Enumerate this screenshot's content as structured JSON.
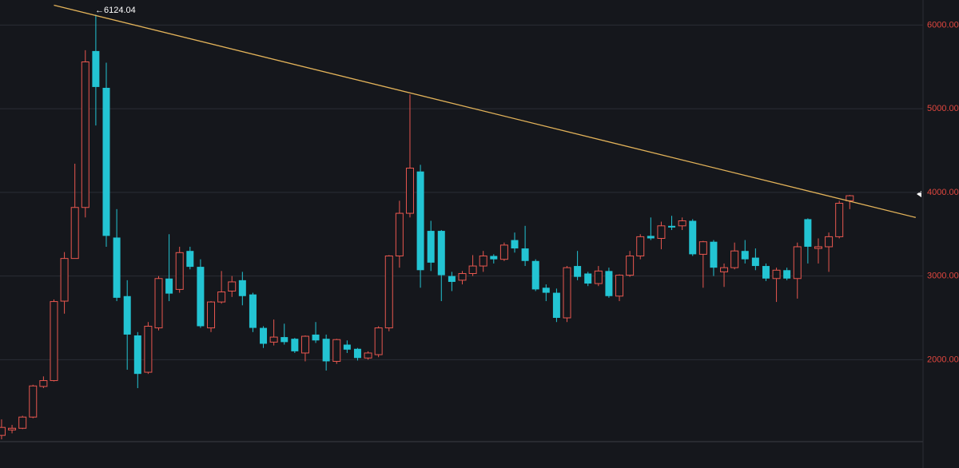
{
  "chart_data": {
    "type": "candlestick",
    "up_color": "#e8574f",
    "down_color": "#23c4d3",
    "grid": true,
    "ylim": [
      1020,
      6300
    ],
    "yticks": [
      {
        "value": 2000,
        "label": "2000.00"
      },
      {
        "value": 3000,
        "label": "3000.00"
      },
      {
        "value": 4000,
        "label": "4000.00"
      },
      {
        "value": 5000,
        "label": "5000.00"
      },
      {
        "value": 6000,
        "label": "6000.00"
      }
    ],
    "xlim": [
      -0.15,
      88
    ],
    "annotations": [
      {
        "text": "←6124.04"
      }
    ],
    "trendline": {
      "color": "#e3b35a",
      "x": [
        5,
        87.3
      ],
      "values": [
        6238,
        3700
      ]
    },
    "open": [
      1095,
      1160,
      1180,
      1314,
      1680,
      1750,
      2700,
      3210,
      3820,
      5690,
      5250,
      3460,
      2760,
      2290,
      1850,
      2380,
      2970,
      2840,
      3300,
      3110,
      2380,
      2690,
      2820,
      2950,
      2780,
      2380,
      2210,
      2270,
      2250,
      2080,
      2300,
      2250,
      1980,
      2180,
      2130,
      2020,
      2060,
      2380,
      3240,
      3750,
      4250,
      3540,
      3540,
      3000,
      2950,
      3030,
      3120,
      3240,
      3200,
      3430,
      3330,
      3180,
      2860,
      2800,
      2500,
      3120,
      3030,
      2910,
      3060,
      2760,
      3010,
      3240,
      3480,
      3450,
      3600,
      3600,
      3660,
      3260,
      3410,
      3050,
      3100,
      3300,
      3220,
      3120,
      2970,
      3070,
      2970,
      3680,
      3330,
      3350,
      3470,
      3900
    ],
    "high": [
      1286,
      1220,
      1330,
      1700,
      1800,
      2720,
      3286,
      4343,
      5700,
      6124.04,
      5550,
      3800,
      2950,
      2330,
      2450,
      3000,
      3500,
      3350,
      3350,
      3200,
      2700,
      3060,
      3000,
      3050,
      2800,
      2400,
      2480,
      2430,
      2260,
      2290,
      2450,
      2300,
      2250,
      2230,
      2140,
      2100,
      2400,
      3250,
      3900,
      5171,
      4330,
      3660,
      3550,
      3050,
      3060,
      3250,
      3300,
      3260,
      3400,
      3520,
      3600,
      3200,
      2900,
      2850,
      3120,
      3300,
      3050,
      3120,
      3100,
      3020,
      3300,
      3500,
      3700,
      3650,
      3720,
      3700,
      3680,
      3420,
      3430,
      3150,
      3400,
      3430,
      3330,
      3150,
      3100,
      3100,
      3400,
      3690,
      3450,
      3520,
      3900,
      3970
    ],
    "low": [
      1048,
      1120,
      1170,
      1300,
      1660,
      1740,
      2550,
      3250,
      3700,
      4800,
      3350,
      2700,
      1880,
      1660,
      1830,
      2350,
      2700,
      2800,
      3080,
      2380,
      2330,
      2670,
      2750,
      2650,
      2330,
      2140,
      2170,
      2180,
      2080,
      1980,
      2200,
      1870,
      1950,
      2080,
      1990,
      2000,
      2030,
      2340,
      3100,
      3700,
      2860,
      3060,
      2700,
      2820,
      2900,
      3000,
      3050,
      3150,
      3180,
      3280,
      3120,
      2820,
      2700,
      2450,
      2450,
      2950,
      2880,
      2880,
      2740,
      2700,
      2990,
      3200,
      3430,
      3320,
      3550,
      3550,
      3240,
      2860,
      3000,
      2870,
      3080,
      3150,
      3070,
      2940,
      2690,
      2950,
      2730,
      3150,
      3150,
      3050,
      3450,
      3800
    ],
    "close": [
      1190,
      1180,
      1314,
      1686,
      1750,
      2695,
      3210,
      3820,
      5560,
      5260,
      3480,
      2740,
      2300,
      1830,
      2400,
      2970,
      2790,
      3280,
      3110,
      2400,
      2690,
      2810,
      2930,
      2760,
      2380,
      2190,
      2270,
      2210,
      2100,
      2280,
      2230,
      1980,
      2240,
      2120,
      2020,
      2080,
      2380,
      3240,
      3750,
      4290,
      3070,
      3160,
      3010,
      2930,
      3030,
      3120,
      3240,
      3200,
      3370,
      3330,
      3180,
      2840,
      2800,
      2500,
      3100,
      2990,
      2910,
      3060,
      2760,
      3010,
      3240,
      3470,
      3450,
      3600,
      3580,
      3660,
      3260,
      3410,
      3100,
      3100,
      3300,
      3200,
      3120,
      2970,
      3070,
      2970,
      3350,
      3350,
      3350,
      3470,
      3870,
      3960
    ]
  }
}
